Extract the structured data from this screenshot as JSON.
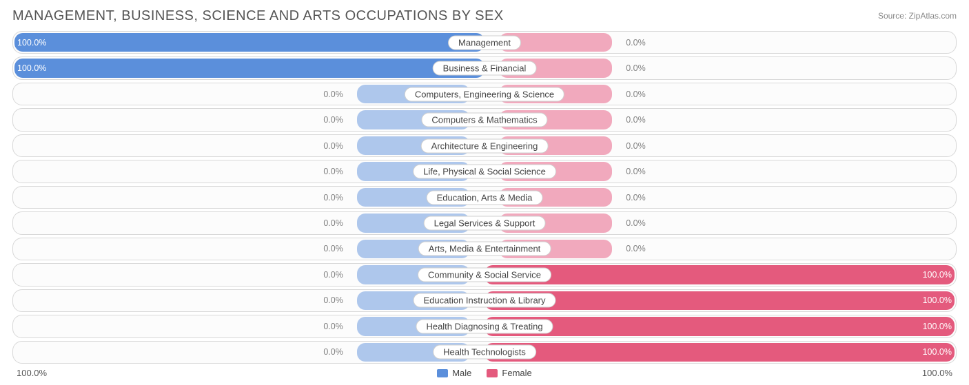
{
  "chart": {
    "title": "MANAGEMENT, BUSINESS, SCIENCE AND ARTS OCCUPATIONS BY SEX",
    "source_label": "Source: ZipAtlas.com",
    "colors": {
      "male_fill": "#5b8fdb",
      "male_track": "#aec7ec",
      "female_fill": "#e45a7d",
      "female_track": "#f1a9bd",
      "title_color": "#555555",
      "source_color": "#888888",
      "row_border": "#d8d8d8",
      "row_bg": "#fcfcfc",
      "pill_bg": "#ffffff",
      "pill_border": "#cfcfcf",
      "label_gray": "#808080",
      "label_white": "#ffffff",
      "footer_text": "#555555"
    },
    "legend": {
      "male": "Male",
      "female": "Female"
    },
    "axis": {
      "left_label": "100.0%",
      "right_label": "100.0%"
    },
    "layout": {
      "track_width_pct": 24,
      "track_offset_pct": 73,
      "zero_label_offset_pct": 70
    },
    "rows": [
      {
        "category": "Management",
        "male_pct": 100.0,
        "female_pct": 0.0,
        "male_label": "100.0%",
        "female_label": "0.0%"
      },
      {
        "category": "Business & Financial",
        "male_pct": 100.0,
        "female_pct": 0.0,
        "male_label": "100.0%",
        "female_label": "0.0%"
      },
      {
        "category": "Computers, Engineering & Science",
        "male_pct": 0.0,
        "female_pct": 0.0,
        "male_label": "0.0%",
        "female_label": "0.0%"
      },
      {
        "category": "Computers & Mathematics",
        "male_pct": 0.0,
        "female_pct": 0.0,
        "male_label": "0.0%",
        "female_label": "0.0%"
      },
      {
        "category": "Architecture & Engineering",
        "male_pct": 0.0,
        "female_pct": 0.0,
        "male_label": "0.0%",
        "female_label": "0.0%"
      },
      {
        "category": "Life, Physical & Social Science",
        "male_pct": 0.0,
        "female_pct": 0.0,
        "male_label": "0.0%",
        "female_label": "0.0%"
      },
      {
        "category": "Education, Arts & Media",
        "male_pct": 0.0,
        "female_pct": 0.0,
        "male_label": "0.0%",
        "female_label": "0.0%"
      },
      {
        "category": "Legal Services & Support",
        "male_pct": 0.0,
        "female_pct": 0.0,
        "male_label": "0.0%",
        "female_label": "0.0%"
      },
      {
        "category": "Arts, Media & Entertainment",
        "male_pct": 0.0,
        "female_pct": 0.0,
        "male_label": "0.0%",
        "female_label": "0.0%"
      },
      {
        "category": "Community & Social Service",
        "male_pct": 0.0,
        "female_pct": 100.0,
        "male_label": "0.0%",
        "female_label": "100.0%"
      },
      {
        "category": "Education Instruction & Library",
        "male_pct": 0.0,
        "female_pct": 100.0,
        "male_label": "0.0%",
        "female_label": "100.0%"
      },
      {
        "category": "Health Diagnosing & Treating",
        "male_pct": 0.0,
        "female_pct": 100.0,
        "male_label": "0.0%",
        "female_label": "100.0%"
      },
      {
        "category": "Health Technologists",
        "male_pct": 0.0,
        "female_pct": 100.0,
        "male_label": "0.0%",
        "female_label": "100.0%"
      }
    ]
  }
}
